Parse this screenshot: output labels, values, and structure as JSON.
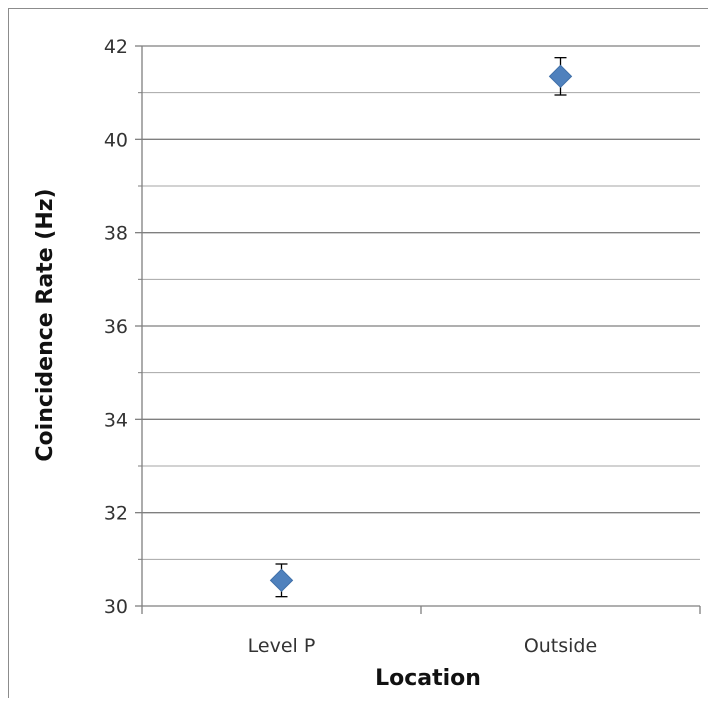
{
  "chart_data": {
    "type": "scatter",
    "title": "",
    "xlabel": "Location",
    "ylabel": "Coincidence Rate (Hz)",
    "categories": [
      "Level P",
      "Outside"
    ],
    "series": [
      {
        "values": [
          30.55,
          41.35
        ],
        "error": [
          0.35,
          0.4
        ],
        "color": "#4f81bd",
        "marker": "diamond"
      }
    ],
    "ylim": [
      30,
      42
    ],
    "yticks": [
      "30",
      "32",
      "34",
      "36",
      "38",
      "40",
      "42"
    ],
    "minor_gridlines": true,
    "major_gridlines": true,
    "legend": "none"
  }
}
